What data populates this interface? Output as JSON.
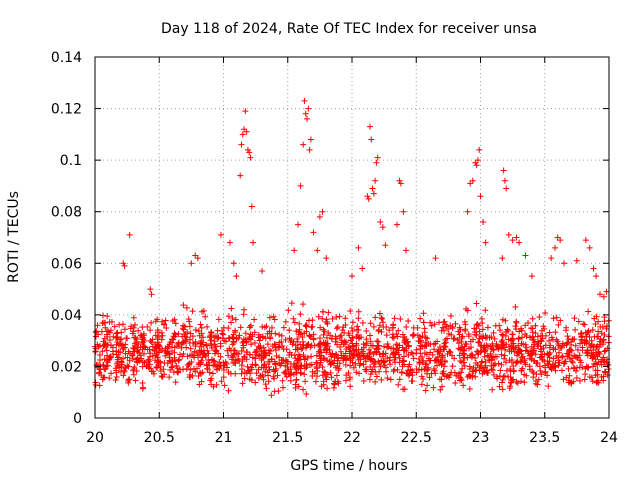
{
  "chart_data": {
    "type": "scatter",
    "title": "Day 118 of 2024, Rate Of TEC Index for receiver unsa",
    "xlabel": "GPS time / hours",
    "ylabel": "ROTI / TECUs",
    "xlim": [
      20,
      24
    ],
    "ylim": [
      0,
      0.14
    ],
    "x_ticks": [
      20,
      20.5,
      21,
      21.5,
      22,
      22.5,
      23,
      23.5,
      24
    ],
    "x_tick_labels": [
      "20",
      "20.5",
      "21",
      "21.5",
      "22",
      "22.5",
      "23",
      "23.5",
      "24"
    ],
    "y_ticks": [
      0,
      0.02,
      0.04,
      0.06,
      0.08,
      0.1,
      0.12,
      0.14
    ],
    "y_tick_labels": [
      "0",
      "0.02",
      "0.04",
      "0.06",
      "0.08",
      "0.1",
      "0.12",
      "0.14"
    ],
    "grid": true,
    "marker": "+",
    "color": "#ff0000",
    "background_band": {
      "x_range": [
        20.0,
        24.0
      ],
      "y_min": 0.008,
      "y_max": 0.045,
      "approx_point_count": 2000
    },
    "series": [
      {
        "name": "ROTI",
        "points": [
          [
            20.22,
            0.06
          ],
          [
            20.23,
            0.059
          ],
          [
            20.27,
            0.071
          ],
          [
            20.43,
            0.05
          ],
          [
            20.44,
            0.048
          ],
          [
            20.75,
            0.06
          ],
          [
            20.78,
            0.063
          ],
          [
            20.8,
            0.062
          ],
          [
            20.98,
            0.071
          ],
          [
            21.05,
            0.068
          ],
          [
            21.08,
            0.06
          ],
          [
            21.1,
            0.055
          ],
          [
            21.13,
            0.094
          ],
          [
            21.14,
            0.106
          ],
          [
            21.15,
            0.11
          ],
          [
            21.16,
            0.112
          ],
          [
            21.17,
            0.119
          ],
          [
            21.18,
            0.111
          ],
          [
            21.19,
            0.104
          ],
          [
            21.2,
            0.103
          ],
          [
            21.21,
            0.101
          ],
          [
            21.22,
            0.082
          ],
          [
            21.23,
            0.068
          ],
          [
            21.3,
            0.057
          ],
          [
            21.55,
            0.065
          ],
          [
            21.58,
            0.075
          ],
          [
            21.6,
            0.09
          ],
          [
            21.62,
            0.106
          ],
          [
            21.63,
            0.123
          ],
          [
            21.64,
            0.118
          ],
          [
            21.65,
            0.116
          ],
          [
            21.66,
            0.12
          ],
          [
            21.67,
            0.104
          ],
          [
            21.68,
            0.108
          ],
          [
            21.7,
            0.072
          ],
          [
            21.73,
            0.065
          ],
          [
            21.75,
            0.078
          ],
          [
            21.77,
            0.08
          ],
          [
            21.8,
            0.062
          ],
          [
            22.0,
            0.055
          ],
          [
            22.05,
            0.066
          ],
          [
            22.08,
            0.058
          ],
          [
            22.12,
            0.086
          ],
          [
            22.13,
            0.085
          ],
          [
            22.14,
            0.113
          ],
          [
            22.15,
            0.108
          ],
          [
            22.16,
            0.089
          ],
          [
            22.17,
            0.087
          ],
          [
            22.18,
            0.092
          ],
          [
            22.19,
            0.099
          ],
          [
            22.2,
            0.101
          ],
          [
            22.22,
            0.076
          ],
          [
            22.24,
            0.074
          ],
          [
            22.26,
            0.067
          ],
          [
            22.35,
            0.075
          ],
          [
            22.37,
            0.092
          ],
          [
            22.38,
            0.091
          ],
          [
            22.4,
            0.08
          ],
          [
            22.42,
            0.065
          ],
          [
            22.65,
            0.062
          ],
          [
            22.9,
            0.08
          ],
          [
            22.92,
            0.091
          ],
          [
            22.94,
            0.092
          ],
          [
            22.96,
            0.099
          ],
          [
            22.97,
            0.098
          ],
          [
            22.98,
            0.1
          ],
          [
            22.99,
            0.104
          ],
          [
            23.0,
            0.086
          ],
          [
            23.02,
            0.076
          ],
          [
            23.04,
            0.068
          ],
          [
            23.17,
            0.062
          ],
          [
            23.18,
            0.096
          ],
          [
            23.19,
            0.092
          ],
          [
            23.2,
            0.089
          ],
          [
            23.22,
            0.071
          ],
          [
            23.25,
            0.069
          ],
          [
            23.28,
            0.07
          ],
          [
            23.3,
            0.068
          ],
          [
            23.35,
            0.063
          ],
          [
            23.4,
            0.055
          ],
          [
            23.55,
            0.062
          ],
          [
            23.58,
            0.066
          ],
          [
            23.6,
            0.07
          ],
          [
            23.62,
            0.069
          ],
          [
            23.65,
            0.06
          ],
          [
            23.75,
            0.061
          ],
          [
            23.82,
            0.069
          ],
          [
            23.85,
            0.066
          ],
          [
            23.88,
            0.058
          ],
          [
            23.9,
            0.055
          ],
          [
            23.93,
            0.048
          ],
          [
            23.96,
            0.047
          ],
          [
            23.98,
            0.049
          ]
        ]
      }
    ]
  }
}
